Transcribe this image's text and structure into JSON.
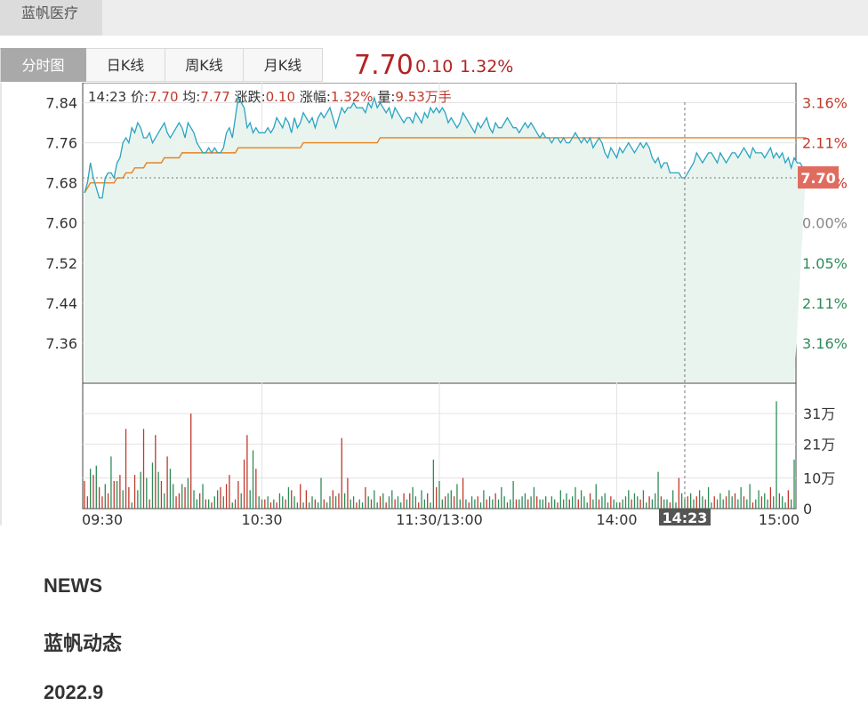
{
  "company_tab": {
    "label": "蓝帆医疗"
  },
  "tabs": [
    "分时图",
    "日K线",
    "周K线",
    "月K线"
  ],
  "active_tab": 0,
  "quote": {
    "price": "7.70",
    "change": "0.10",
    "change_pct": "1.32%"
  },
  "colors": {
    "up": "#c0392b",
    "down": "#2e8b57",
    "price_line": "#2aa4c2",
    "avg_line": "#e8821e",
    "fill": "#e9f4ef",
    "price_tag": "#e06c5f"
  },
  "chart_data": {
    "type": "line",
    "info_bar": {
      "time": "14:23",
      "price_label": "价",
      "price": "7.70",
      "avg_label": "均",
      "avg": "7.77",
      "change_label": "涨跌",
      "change": "0.10",
      "pct_label": "涨幅",
      "pct": "1.32%",
      "vol_label": "量",
      "vol": "9.53万手"
    },
    "prev_close": 7.6,
    "ylim": [
      7.28,
      7.88
    ],
    "y_ticks": [
      "7.84",
      "7.76",
      "7.68",
      "7.60",
      "7.52",
      "7.44",
      "7.36"
    ],
    "y_tick_values": [
      7.84,
      7.76,
      7.68,
      7.6,
      7.52,
      7.44,
      7.36
    ],
    "pct_ticks": [
      "3.16%",
      "2.11%",
      "1.05%",
      "0.00%",
      "1.05%",
      "2.11%",
      "3.16%"
    ],
    "x_ticks": [
      "09:30",
      "10:30",
      "11:30/13:00",
      "14:00",
      "15:00"
    ],
    "x_tick_index": [
      0,
      60,
      120,
      180,
      240
    ],
    "cursor": {
      "index": 203,
      "label": "14:23",
      "price_tag": "7.70"
    },
    "vol_ticks": [
      "31万",
      "21万",
      "10万",
      "0"
    ],
    "vol_tick_values": [
      31,
      21,
      10,
      0
    ],
    "vol_max": 38,
    "price": [
      7.66,
      7.68,
      7.72,
      7.69,
      7.67,
      7.65,
      7.65,
      7.69,
      7.7,
      7.7,
      7.69,
      7.72,
      7.73,
      7.76,
      7.77,
      7.76,
      7.79,
      7.78,
      7.8,
      7.79,
      7.77,
      7.77,
      7.78,
      7.76,
      7.77,
      7.78,
      7.79,
      7.8,
      7.78,
      7.77,
      7.78,
      7.79,
      7.8,
      7.79,
      7.77,
      7.8,
      7.79,
      7.78,
      7.76,
      7.75,
      7.74,
      7.74,
      7.75,
      7.74,
      7.75,
      7.74,
      7.74,
      7.75,
      7.78,
      7.79,
      7.77,
      7.81,
      7.85,
      7.84,
      7.83,
      7.79,
      7.8,
      7.78,
      7.79,
      7.78,
      7.78,
      7.78,
      7.79,
      7.78,
      7.79,
      7.81,
      7.8,
      7.79,
      7.81,
      7.8,
      7.78,
      7.81,
      7.79,
      7.8,
      7.82,
      7.81,
      7.8,
      7.81,
      7.79,
      7.81,
      7.82,
      7.81,
      7.82,
      7.83,
      7.81,
      7.79,
      7.81,
      7.83,
      7.82,
      7.83,
      7.83,
      7.84,
      7.83,
      7.83,
      7.83,
      7.82,
      7.84,
      7.83,
      7.85,
      7.83,
      7.84,
      7.83,
      7.82,
      7.83,
      7.81,
      7.83,
      7.82,
      7.81,
      7.8,
      7.81,
      7.81,
      7.8,
      7.82,
      7.81,
      7.8,
      7.82,
      7.81,
      7.83,
      7.82,
      7.83,
      7.82,
      7.83,
      7.82,
      7.8,
      7.81,
      7.8,
      7.79,
      7.8,
      7.82,
      7.81,
      7.8,
      7.79,
      7.78,
      7.8,
      7.79,
      7.8,
      7.81,
      7.79,
      7.78,
      7.8,
      7.79,
      7.79,
      7.8,
      7.81,
      7.8,
      7.79,
      7.79,
      7.78,
      7.79,
      7.8,
      7.79,
      7.8,
      7.79,
      7.78,
      7.77,
      7.78,
      7.77,
      7.77,
      7.76,
      7.77,
      7.77,
      7.76,
      7.77,
      7.76,
      7.76,
      7.77,
      7.78,
      7.77,
      7.76,
      7.77,
      7.76,
      7.77,
      7.75,
      7.76,
      7.77,
      7.76,
      7.74,
      7.73,
      7.75,
      7.74,
      7.73,
      7.75,
      7.74,
      7.75,
      7.76,
      7.75,
      7.74,
      7.75,
      7.76,
      7.75,
      7.76,
      7.75,
      7.73,
      7.72,
      7.73,
      7.71,
      7.72,
      7.72,
      7.7,
      7.7,
      7.7,
      7.7,
      7.69,
      7.69,
      7.7,
      7.71,
      7.72,
      7.74,
      7.73,
      7.72,
      7.73,
      7.74,
      7.74,
      7.73,
      7.72,
      7.74,
      7.73,
      7.72,
      7.73,
      7.74,
      7.74,
      7.73,
      7.74,
      7.75,
      7.74,
      7.73,
      7.75,
      7.74,
      7.74,
      7.74,
      7.73,
      7.74,
      7.75,
      7.73,
      7.74,
      7.73,
      7.74,
      7.72,
      7.73,
      7.71,
      7.73,
      7.72,
      7.72,
      7.71,
      7.7
    ],
    "avg": [
      7.66,
      7.67,
      7.68,
      7.68,
      7.68,
      7.68,
      7.68,
      7.68,
      7.68,
      7.68,
      7.68,
      7.69,
      7.69,
      7.69,
      7.7,
      7.7,
      7.7,
      7.71,
      7.71,
      7.71,
      7.71,
      7.72,
      7.72,
      7.72,
      7.72,
      7.72,
      7.72,
      7.73,
      7.73,
      7.73,
      7.73,
      7.73,
      7.73,
      7.74,
      7.74,
      7.74,
      7.74,
      7.74,
      7.74,
      7.74,
      7.74,
      7.74,
      7.74,
      7.74,
      7.74,
      7.74,
      7.74,
      7.74,
      7.74,
      7.74,
      7.74,
      7.74,
      7.75,
      7.75,
      7.75,
      7.75,
      7.75,
      7.75,
      7.75,
      7.75,
      7.75,
      7.75,
      7.75,
      7.75,
      7.75,
      7.75,
      7.75,
      7.75,
      7.75,
      7.75,
      7.75,
      7.75,
      7.75,
      7.75,
      7.76,
      7.76,
      7.76,
      7.76,
      7.76,
      7.76,
      7.76,
      7.76,
      7.76,
      7.76,
      7.76,
      7.76,
      7.76,
      7.76,
      7.76,
      7.76,
      7.76,
      7.76,
      7.76,
      7.76,
      7.76,
      7.76,
      7.76,
      7.76,
      7.76,
      7.76,
      7.77,
      7.77,
      7.77,
      7.77,
      7.77,
      7.77,
      7.77,
      7.77,
      7.77,
      7.77,
      7.77,
      7.77,
      7.77,
      7.77,
      7.77,
      7.77,
      7.77,
      7.77,
      7.77,
      7.77,
      7.77,
      7.77,
      7.77,
      7.77,
      7.77,
      7.77,
      7.77,
      7.77,
      7.77,
      7.77,
      7.77,
      7.77,
      7.77,
      7.77,
      7.77,
      7.77,
      7.77,
      7.77,
      7.77,
      7.77,
      7.77,
      7.77,
      7.77,
      7.77,
      7.77,
      7.77,
      7.77,
      7.77,
      7.77,
      7.77,
      7.77,
      7.77,
      7.77,
      7.77,
      7.77,
      7.77,
      7.77,
      7.77,
      7.77,
      7.77,
      7.77,
      7.77,
      7.77,
      7.77,
      7.77,
      7.77,
      7.77,
      7.77,
      7.77,
      7.77,
      7.77,
      7.77,
      7.77,
      7.77,
      7.77,
      7.77,
      7.77,
      7.77,
      7.77,
      7.77,
      7.77,
      7.77,
      7.77,
      7.77,
      7.77,
      7.77,
      7.77,
      7.77,
      7.77,
      7.77,
      7.77,
      7.77,
      7.77,
      7.77,
      7.77,
      7.77,
      7.77,
      7.77,
      7.77,
      7.77,
      7.77,
      7.77,
      7.77,
      7.77,
      7.77,
      7.77,
      7.77,
      7.77,
      7.77,
      7.77,
      7.77,
      7.77,
      7.77,
      7.77,
      7.77,
      7.77,
      7.77,
      7.77,
      7.77,
      7.77,
      7.77,
      7.77,
      7.77,
      7.77,
      7.77,
      7.77,
      7.77,
      7.77,
      7.77,
      7.77,
      7.77,
      7.77,
      7.77,
      7.77,
      7.77,
      7.77,
      7.77,
      7.77,
      7.77,
      7.77,
      7.77,
      7.77,
      7.77,
      7.77,
      7.77
    ],
    "volume": [
      9,
      4,
      13,
      11,
      14,
      7,
      4,
      8,
      5,
      17,
      9,
      9,
      11,
      6,
      26,
      7,
      2,
      11,
      6,
      12,
      26,
      10,
      3,
      15,
      24,
      12,
      9,
      5,
      17,
      13,
      8,
      4,
      5,
      8,
      7,
      10,
      31,
      6,
      3,
      5,
      8,
      3,
      3,
      2,
      4,
      6,
      7,
      4,
      8,
      11,
      2,
      3,
      9,
      5,
      16,
      24,
      6,
      19,
      13,
      4,
      3,
      3,
      4,
      2,
      3,
      2,
      5,
      4,
      3,
      7,
      6,
      4,
      2,
      8,
      2,
      6,
      2,
      4,
      3,
      2,
      10,
      3,
      2,
      4,
      6,
      4,
      5,
      23,
      5,
      10,
      3,
      4,
      2,
      3,
      2,
      7,
      4,
      3,
      6,
      2,
      4,
      5,
      2,
      4,
      6,
      3,
      4,
      2,
      5,
      3,
      5,
      7,
      4,
      2,
      6,
      3,
      5,
      2,
      16,
      7,
      9,
      3,
      4,
      5,
      6,
      4,
      8,
      3,
      10,
      3,
      2,
      4,
      3,
      4,
      2,
      6,
      3,
      4,
      3,
      5,
      3,
      7,
      4,
      2,
      3,
      9,
      3,
      3,
      4,
      5,
      3,
      4,
      7,
      4,
      3,
      3,
      4,
      2,
      4,
      3,
      2,
      6,
      3,
      5,
      3,
      4,
      7,
      3,
      6,
      4,
      2,
      5,
      3,
      8,
      3,
      4,
      5,
      2,
      4,
      3,
      2,
      2,
      3,
      4,
      6,
      3,
      5,
      4,
      3,
      6,
      2,
      4,
      3,
      5,
      12,
      4,
      3,
      3,
      2,
      6,
      2,
      10,
      5,
      3,
      4,
      5,
      3,
      4,
      6,
      4,
      3,
      7,
      2,
      4,
      3,
      5,
      3,
      4,
      6,
      4,
      5,
      3,
      7,
      4,
      3,
      8,
      2,
      3,
      6,
      4,
      5,
      3,
      7,
      4,
      35,
      5,
      4,
      2,
      6,
      3,
      16
    ],
    "volume_up": [
      true,
      true,
      false,
      true,
      false,
      true,
      true,
      false,
      true,
      false,
      true,
      false,
      true,
      false,
      true,
      true,
      false,
      true,
      false,
      false,
      true,
      false,
      true,
      false,
      true,
      false,
      true,
      false,
      true,
      false,
      false,
      true,
      true,
      false,
      true,
      false,
      true,
      false,
      false,
      true,
      false,
      true,
      false,
      true,
      false,
      false,
      true,
      false,
      true,
      true,
      false,
      true,
      true,
      false,
      true,
      true,
      false,
      false,
      true,
      false,
      false,
      true,
      false,
      true,
      false,
      true,
      false,
      false,
      true,
      false,
      true,
      false,
      false,
      true,
      false,
      true,
      false,
      false,
      true,
      false,
      false,
      true,
      false,
      false,
      true,
      false,
      true,
      true,
      false,
      true,
      false,
      false,
      true,
      false,
      false,
      true,
      false,
      true,
      false,
      false,
      true,
      false,
      true,
      false,
      false,
      true,
      false,
      false,
      true,
      false,
      true,
      false,
      false,
      true,
      false,
      false,
      true,
      false,
      false,
      true,
      false,
      false,
      true,
      false,
      false,
      true,
      false,
      false,
      true,
      false,
      true,
      false,
      false,
      true,
      false,
      false,
      true,
      false,
      false,
      true,
      false,
      false,
      false,
      true,
      false,
      false,
      true,
      false,
      false,
      false,
      true,
      false,
      false,
      true,
      false,
      false,
      false,
      true,
      false,
      false,
      true,
      false,
      false,
      false,
      true,
      false,
      false,
      true,
      false,
      false,
      false,
      true,
      false,
      false,
      true,
      false,
      false,
      false,
      true,
      false,
      false,
      true,
      false,
      false,
      false,
      true,
      false,
      false,
      true,
      false,
      false,
      true,
      false,
      false,
      false,
      true,
      false,
      false,
      true,
      false,
      false,
      true,
      false,
      false,
      true,
      false,
      false,
      true,
      false,
      false,
      true,
      false,
      false,
      true,
      false,
      false,
      false,
      true,
      false,
      false,
      true,
      false,
      false,
      true,
      false,
      false,
      true,
      false,
      false,
      true,
      false,
      false,
      true,
      false,
      false,
      true,
      false,
      false,
      true,
      false,
      false,
      true,
      false,
      false,
      false,
      true,
      false
    ]
  },
  "news": {
    "heading": "NEWS",
    "subheading": "蓝帆动态",
    "date": "2022.9"
  }
}
